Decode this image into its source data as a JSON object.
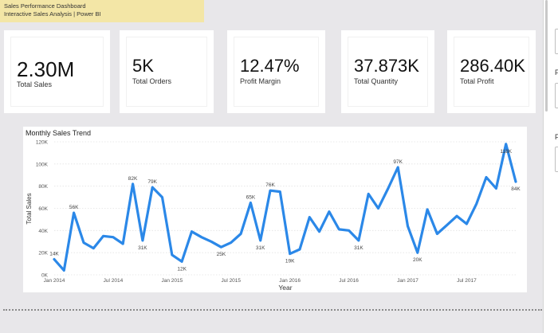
{
  "banner": {
    "line1": "Sales Performance Dashboard",
    "line2": "Interactive Sales Analysis | Power BI"
  },
  "kpis": [
    {
      "value": "2.30M",
      "label": "Total Sales"
    },
    {
      "value": "5K",
      "label": "Total Orders"
    },
    {
      "value": "12.47%",
      "label": "Profit Margin"
    },
    {
      "value": "37.873K",
      "label": "Total Quantity"
    },
    {
      "value": "286.40K",
      "label": "Total Profit"
    }
  ],
  "right_pane": {
    "letter1": "F",
    "letter2": "F"
  },
  "colors": {
    "line": "#2b88e8",
    "banner": "#f3e6a6",
    "background": "#e8e7ea"
  },
  "chart_data": {
    "type": "line",
    "title": "Monthly Sales Trend",
    "xlabel": "Year",
    "ylabel": "Total Sales",
    "ylim": [
      0,
      120000
    ],
    "yticks": [
      "0K",
      "20K",
      "40K",
      "60K",
      "80K",
      "100K",
      "120K"
    ],
    "xticks": [
      "Jan 2014",
      "Jul 2014",
      "Jan 2015",
      "Jul 2015",
      "Jan 2016",
      "Jul 2016",
      "Jan 2017",
      "Jul 2017"
    ],
    "grid": true,
    "x": [
      "2014-01",
      "2014-02",
      "2014-03",
      "2014-04",
      "2014-05",
      "2014-06",
      "2014-07",
      "2014-08",
      "2014-09",
      "2014-10",
      "2014-11",
      "2014-12",
      "2015-01",
      "2015-02",
      "2015-03",
      "2015-04",
      "2015-05",
      "2015-06",
      "2015-07",
      "2015-08",
      "2015-09",
      "2015-10",
      "2015-11",
      "2015-12",
      "2016-01",
      "2016-02",
      "2016-03",
      "2016-04",
      "2016-05",
      "2016-06",
      "2016-07",
      "2016-08",
      "2016-09",
      "2016-10",
      "2016-11",
      "2016-12",
      "2017-01",
      "2017-02",
      "2017-03",
      "2017-04",
      "2017-05",
      "2017-06",
      "2017-07",
      "2017-08",
      "2017-09",
      "2017-10",
      "2017-11",
      "2017-12"
    ],
    "values": [
      14000,
      4000,
      56000,
      29000,
      24000,
      35000,
      34000,
      28000,
      82000,
      31000,
      79000,
      70000,
      18000,
      12000,
      39000,
      34000,
      30000,
      25000,
      29000,
      37000,
      65000,
      31000,
      76000,
      75000,
      19000,
      23000,
      52000,
      39000,
      57000,
      41000,
      40000,
      31000,
      73000,
      60000,
      78000,
      97000,
      44000,
      20000,
      59000,
      37000,
      45000,
      53000,
      46000,
      64000,
      88000,
      78000,
      118000,
      84000
    ],
    "data_labels": [
      {
        "i": 0,
        "text": "14K",
        "pos": "above"
      },
      {
        "i": 2,
        "text": "56K",
        "pos": "above"
      },
      {
        "i": 8,
        "text": "82K",
        "pos": "above"
      },
      {
        "i": 9,
        "text": "31K",
        "pos": "below"
      },
      {
        "i": 10,
        "text": "79K",
        "pos": "above"
      },
      {
        "i": 13,
        "text": "12K",
        "pos": "below"
      },
      {
        "i": 17,
        "text": "25K",
        "pos": "below"
      },
      {
        "i": 20,
        "text": "65K",
        "pos": "above"
      },
      {
        "i": 21,
        "text": "31K",
        "pos": "below"
      },
      {
        "i": 22,
        "text": "76K",
        "pos": "above"
      },
      {
        "i": 24,
        "text": "19K",
        "pos": "below"
      },
      {
        "i": 31,
        "text": "31K",
        "pos": "below"
      },
      {
        "i": 35,
        "text": "97K",
        "pos": "above"
      },
      {
        "i": 37,
        "text": "20K",
        "pos": "below"
      },
      {
        "i": 46,
        "text": "118K",
        "pos": "below"
      },
      {
        "i": 47,
        "text": "84K",
        "pos": "below"
      }
    ]
  }
}
